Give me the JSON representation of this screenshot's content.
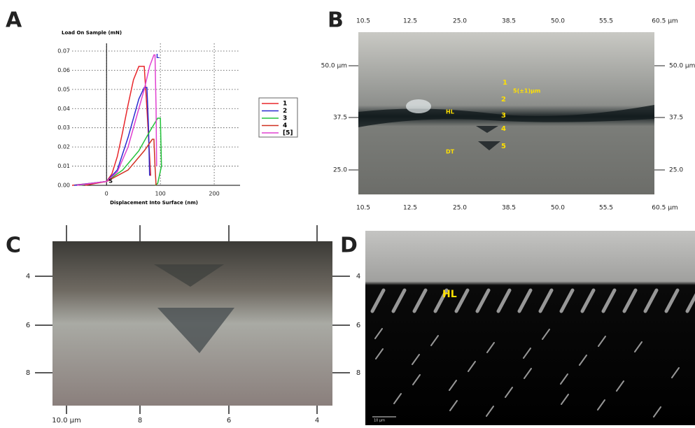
{
  "panel_labels": [
    "A",
    "B",
    "C",
    "D"
  ],
  "chart_data": {
    "type": "line",
    "ylabel": "Load On Sample (mN)",
    "xlabel": "Displacement Into Surface (nm)",
    "xlim": [
      -64,
      248
    ],
    "ylim": [
      0,
      0.074
    ],
    "xticks": [
      0,
      100,
      200
    ],
    "yticks": [
      {
        "value": 0,
        "label": "0.00"
      },
      0.01,
      0.02,
      0.03,
      0.04,
      0.05,
      0.06,
      0.07
    ],
    "grid": true,
    "annotations": [
      "S",
      "L"
    ],
    "series": [
      {
        "name": "1",
        "color": "#e8262b",
        "x": [
          -64,
          -30,
          0,
          10,
          20,
          30,
          40,
          50,
          60,
          70,
          75,
          80,
          82
        ],
        "values": [
          0,
          0.001,
          0.002,
          0.006,
          0.015,
          0.028,
          0.042,
          0.055,
          0.062,
          0.062,
          0.04,
          0.015,
          0.005
        ]
      },
      {
        "name": "2",
        "color": "#2b2bd0",
        "x": [
          -60,
          0,
          20,
          40,
          60,
          70,
          75,
          78,
          80
        ],
        "values": [
          0,
          0.002,
          0.008,
          0.025,
          0.045,
          0.051,
          0.051,
          0.03,
          0.005
        ]
      },
      {
        "name": "3",
        "color": "#22c23a",
        "x": [
          -50,
          0,
          30,
          60,
          80,
          95,
          100,
          102,
          95,
          90
        ],
        "values": [
          0,
          0.002,
          0.008,
          0.018,
          0.028,
          0.035,
          0.035,
          0.01,
          0.001,
          0
        ]
      },
      {
        "name": "4",
        "color": "#d03020",
        "x": [
          -40,
          0,
          40,
          70,
          85,
          88,
          90,
          92
        ],
        "values": [
          0,
          0.002,
          0.008,
          0.018,
          0.024,
          0.024,
          0.01,
          0
        ]
      },
      {
        "name": "[5]",
        "color": "#e040d0",
        "x": [
          -55,
          0,
          20,
          40,
          55,
          70,
          80,
          88,
          90,
          92,
          93
        ],
        "values": [
          0,
          0.002,
          0.007,
          0.02,
          0.035,
          0.05,
          0.062,
          0.068,
          0.068,
          0.04,
          0.01
        ]
      }
    ]
  },
  "panel_b": {
    "top_ticks": [
      "10.5",
      "12.5",
      "25.0",
      "38.5",
      "50.0",
      "55.5",
      "60.5 µm"
    ],
    "bottom_ticks": [
      "10.5",
      "12.5",
      "25.0",
      "38.5",
      "50.0",
      "55.5",
      "60.5 µm"
    ],
    "left_ticks": [
      "50.0 µm",
      "37.5",
      "25.0"
    ],
    "right_ticks": [
      "50.0 µm",
      "37.5",
      "25.0"
    ],
    "indents": [
      "1",
      "2",
      "3",
      "4",
      "5"
    ],
    "spacing": "5(±1)µm",
    "hl": "HL",
    "dt": "DT"
  },
  "panel_c": {
    "left_ticks": [
      "4",
      "6",
      "8"
    ],
    "right_ticks": [
      "4",
      "6",
      "8"
    ],
    "bottom_ticks": [
      "10.0 µm",
      "8",
      "6",
      "4"
    ]
  },
  "panel_d": {
    "hl": "HL",
    "scale_bar": "10 µm"
  }
}
